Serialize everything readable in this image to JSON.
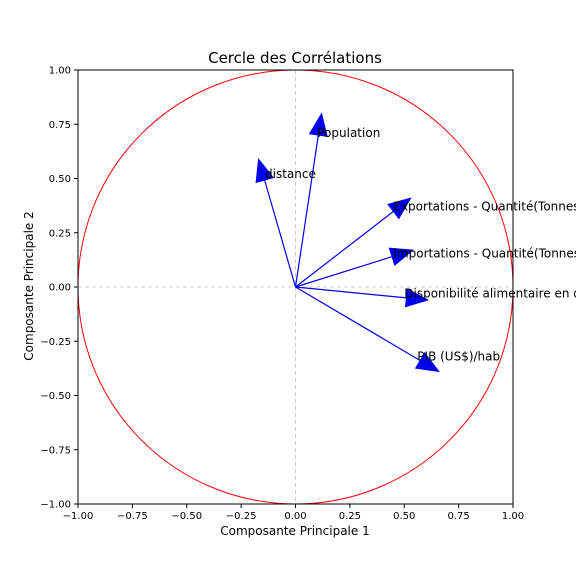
{
  "chart_data": {
    "type": "scatter",
    "title": "Cercle des Corrélations",
    "xlabel": "Composante Principale 1",
    "ylabel": "Composante Principale 2",
    "xlim": [
      -1.0,
      1.0
    ],
    "ylim": [
      -1.0,
      1.0
    ],
    "xticks": [
      "−1.00",
      "−0.75",
      "−0.50",
      "−0.25",
      "0.00",
      "0.25",
      "0.50",
      "0.75",
      "1.00"
    ],
    "yticks": [
      "−1.00",
      "−0.75",
      "−0.50",
      "−0.25",
      "0.00",
      "0.25",
      "0.50",
      "0.75",
      "1.00"
    ],
    "grid": false,
    "circle": {
      "radius": 1.0,
      "color": "#ff0000"
    },
    "zero_lines_color": "#c0c0c0",
    "arrow_color": "#0000ee",
    "vectors": [
      {
        "name": "Population",
        "x": 0.12,
        "y": 0.8,
        "lx": 0.1,
        "ly": 0.71
      },
      {
        "name": "distance",
        "x": -0.17,
        "y": 0.59,
        "lx": -0.14,
        "ly": 0.52
      },
      {
        "name": "Exportations - Quantité(Tonnes)",
        "x": 0.53,
        "y": 0.41,
        "lx": 0.45,
        "ly": 0.37
      },
      {
        "name": "Importations - Quantité(Tonnes)",
        "x": 0.54,
        "y": 0.17,
        "lx": 0.45,
        "ly": 0.155
      },
      {
        "name": "Disponibilité alimentaire en quantité (kg/personne/an)",
        "x": 0.61,
        "y": -0.06,
        "lx": 0.5,
        "ly": -0.03
      },
      {
        "name": "PIB (US$)/hab",
        "x": 0.66,
        "y": -0.39,
        "lx": 0.56,
        "ly": -0.32
      }
    ]
  }
}
